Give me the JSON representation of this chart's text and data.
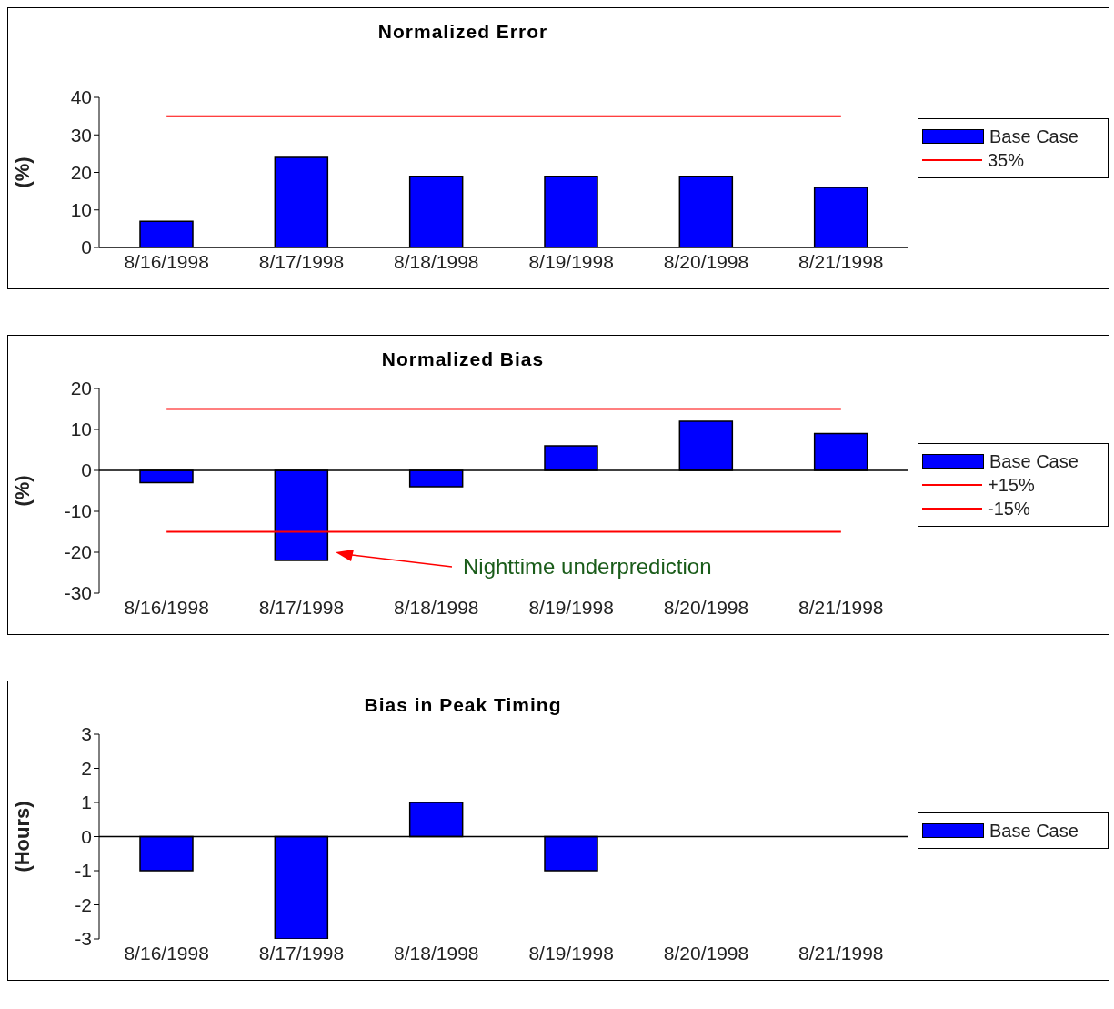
{
  "chart_data": [
    {
      "type": "bar",
      "title": "Normalized Error",
      "ylabel": "(%)",
      "categories": [
        "8/16/1998",
        "8/17/1998",
        "8/18/1998",
        "8/19/1998",
        "8/20/1998",
        "8/21/1998"
      ],
      "series": [
        {
          "name": "Base Case",
          "color": "#0000ff",
          "values": [
            7,
            24,
            19,
            19,
            19,
            16
          ]
        },
        {
          "name": "35%",
          "type": "line",
          "color": "#ff0000",
          "values": [
            35,
            35,
            35,
            35,
            35,
            35
          ]
        }
      ],
      "ylim": [
        0,
        40
      ],
      "yticks": [
        0,
        10,
        20,
        30,
        40
      ],
      "grid": false,
      "legend": "right",
      "marker": "none"
    },
    {
      "type": "bar",
      "title": "Normalized Bias",
      "ylabel": "(%)",
      "categories": [
        "8/16/1998",
        "8/17/1998",
        "8/18/1998",
        "8/19/1998",
        "8/20/1998",
        "8/21/1998"
      ],
      "series": [
        {
          "name": "Base Case",
          "color": "#0000ff",
          "values": [
            -3,
            -22,
            -4,
            6,
            12,
            9
          ]
        },
        {
          "name": "+15%",
          "type": "line",
          "color": "#ff0000",
          "values": [
            15,
            15,
            15,
            15,
            15,
            15
          ]
        },
        {
          "name": "-15%",
          "type": "line",
          "color": "#ff0000",
          "values": [
            -15,
            -15,
            -15,
            -15,
            -15,
            -15
          ]
        }
      ],
      "annotations": [
        "Nighttime underprediction"
      ],
      "ref_lines": [
        {
          "axis": "y",
          "value": 0,
          "color": "#000000"
        }
      ],
      "ylim": [
        -30,
        20
      ],
      "yticks": [
        -30,
        -20,
        -10,
        0,
        10,
        20
      ],
      "grid": false,
      "legend": "right",
      "marker": "none"
    },
    {
      "type": "bar",
      "title": "Bias in Peak Timing",
      "ylabel": "(Hours)",
      "categories": [
        "8/16/1998",
        "8/17/1998",
        "8/18/1998",
        "8/19/1998",
        "8/20/1998",
        "8/21/1998"
      ],
      "series": [
        {
          "name": "Base Case",
          "color": "#0000ff",
          "values": [
            -1,
            -3,
            1,
            -1,
            0,
            0
          ]
        }
      ],
      "ref_lines": [
        {
          "axis": "y",
          "value": 0,
          "color": "#000000"
        }
      ],
      "ylim": [
        -3,
        3
      ],
      "yticks": [
        -3,
        -2,
        -1,
        0,
        1,
        2,
        3
      ],
      "grid": false,
      "legend": "right"
    }
  ]
}
